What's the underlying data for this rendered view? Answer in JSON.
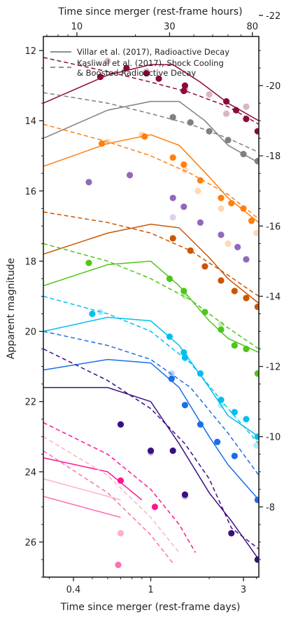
{
  "chart_data": {
    "type": "scatter",
    "x_scale": "log",
    "xlabel": "Time since merger (rest-frame days)",
    "top_xlabel": "Time since merger (rest-frame hours)",
    "ylabel": "Apparent magnitude",
    "right_ylabel": "",
    "xlim": [
      0.28,
      3.6
    ],
    "ylim": [
      27.0,
      11.6
    ],
    "xticks": [
      0.4,
      1,
      3
    ],
    "xtick_labels": [
      "0.4",
      "1",
      "3"
    ],
    "top_xticks_hours": [
      10,
      30,
      80
    ],
    "top_xtick_labels": [
      "10",
      "30",
      "80"
    ],
    "yticks": [
      12,
      14,
      16,
      18,
      20,
      22,
      24,
      26
    ],
    "ytick_labels": [
      "12",
      "14",
      "16",
      "18",
      "20",
      "22",
      "24",
      "26"
    ],
    "right_yticks_abs": [
      -22,
      -20,
      -18,
      -16,
      -14,
      -12,
      -10,
      -8
    ],
    "right_ytick_labels": [
      "-22",
      "-20",
      "-18",
      "-16",
      "-14",
      "-12",
      "-10",
      "-8"
    ],
    "abs_mag_offset": 33.0,
    "grid": false,
    "legend_position": "top-left",
    "legend": [
      {
        "label": "Villar et al. (2017), Radioactive Decay",
        "style": "solid",
        "color": "#808080"
      },
      {
        "label": "Kasliwal et al. (2017), Shock Cooling",
        "label2": "& Boosted Radioactive Decay",
        "style": "dashed",
        "color": "#808080"
      }
    ],
    "series": [
      {
        "color": "#8b0a3c",
        "solid": [
          [
            0.28,
            13.5
          ],
          [
            0.6,
            12.7
          ],
          [
            1.0,
            12.4
          ],
          [
            1.3,
            12.4
          ],
          [
            1.8,
            12.9
          ],
          [
            2.5,
            13.5
          ],
          [
            3.6,
            14.0
          ]
        ],
        "dashed": [
          [
            0.28,
            12.2
          ],
          [
            0.6,
            12.6
          ],
          [
            1.0,
            12.9
          ],
          [
            1.6,
            13.2
          ],
          [
            2.5,
            13.6
          ],
          [
            3.6,
            14.1
          ]
        ],
        "points": [
          [
            0.55,
            12.75
          ],
          [
            0.75,
            12.5
          ],
          [
            0.95,
            12.65
          ],
          [
            1.1,
            12.8
          ],
          [
            1.48,
            13.15
          ],
          [
            1.5,
            13.0
          ],
          [
            2.45,
            13.45
          ],
          [
            2.75,
            13.7
          ],
          [
            3.1,
            13.95
          ],
          [
            3.55,
            14.3
          ]
        ],
        "faint_points": [
          [
            0.6,
            12.3
          ],
          [
            0.95,
            12.6
          ],
          [
            1.5,
            13.1
          ],
          [
            2.0,
            13.25
          ],
          [
            2.45,
            13.8
          ],
          [
            3.1,
            13.6
          ]
        ]
      },
      {
        "color": "#808080",
        "solid": [
          [
            0.28,
            14.5
          ],
          [
            0.6,
            13.7
          ],
          [
            1.0,
            13.45
          ],
          [
            1.4,
            13.45
          ],
          [
            1.9,
            14.0
          ],
          [
            2.5,
            14.7
          ],
          [
            3.6,
            15.2
          ]
        ],
        "dashed": [
          [
            0.28,
            13.2
          ],
          [
            0.6,
            13.5
          ],
          [
            1.0,
            13.8
          ],
          [
            1.6,
            14.1
          ],
          [
            2.5,
            14.5
          ],
          [
            3.6,
            14.9
          ]
        ],
        "points": [
          [
            1.3,
            13.9
          ],
          [
            1.6,
            14.05
          ],
          [
            2.0,
            14.3
          ],
          [
            2.5,
            14.55
          ],
          [
            3.0,
            14.95
          ],
          [
            3.55,
            15.15
          ]
        ],
        "faint_points": []
      },
      {
        "color": "#ff7f0e",
        "solid": [
          [
            0.28,
            15.3
          ],
          [
            0.6,
            14.65
          ],
          [
            1.0,
            14.4
          ],
          [
            1.4,
            14.7
          ],
          [
            2.0,
            15.6
          ],
          [
            2.5,
            16.2
          ],
          [
            3.6,
            16.9
          ]
        ],
        "dashed": [
          [
            0.28,
            14.1
          ],
          [
            0.6,
            14.6
          ],
          [
            1.0,
            15.0
          ],
          [
            1.6,
            15.5
          ],
          [
            2.5,
            16.1
          ],
          [
            3.6,
            16.8
          ]
        ],
        "points": [
          [
            0.56,
            14.65
          ],
          [
            0.93,
            14.45
          ],
          [
            1.3,
            15.05
          ],
          [
            1.48,
            15.25
          ],
          [
            1.8,
            15.7
          ],
          [
            2.3,
            16.2
          ],
          [
            2.6,
            16.35
          ],
          [
            3.0,
            16.5
          ],
          [
            3.3,
            16.85
          ]
        ],
        "faint_points": [
          [
            0.6,
            14.6
          ],
          [
            0.9,
            14.4
          ],
          [
            1.5,
            15.4
          ],
          [
            1.75,
            16.0
          ],
          [
            2.3,
            16.5
          ],
          [
            2.5,
            17.5
          ],
          [
            3.5,
            17.2
          ]
        ]
      },
      {
        "color": "#9467bd",
        "solid": [],
        "dashed": [],
        "points": [
          [
            0.48,
            15.75
          ],
          [
            0.78,
            15.55
          ],
          [
            1.3,
            16.2
          ],
          [
            1.48,
            16.45
          ],
          [
            1.8,
            16.9
          ],
          [
            2.3,
            17.25
          ],
          [
            2.8,
            17.6
          ],
          [
            3.1,
            17.95
          ]
        ],
        "faint_points": [
          [
            1.3,
            16.75
          ]
        ]
      },
      {
        "color": "#cc5500",
        "solid": [
          [
            0.28,
            17.8
          ],
          [
            0.6,
            17.2
          ],
          [
            1.0,
            16.95
          ],
          [
            1.4,
            17.05
          ],
          [
            2.0,
            17.9
          ],
          [
            2.5,
            18.5
          ],
          [
            3.6,
            19.2
          ]
        ],
        "dashed": [
          [
            0.28,
            16.6
          ],
          [
            0.6,
            16.9
          ],
          [
            1.0,
            17.2
          ],
          [
            1.6,
            17.7
          ],
          [
            2.5,
            18.4
          ],
          [
            3.6,
            19.0
          ]
        ],
        "points": [
          [
            1.3,
            17.35
          ],
          [
            1.6,
            17.7
          ],
          [
            1.9,
            18.15
          ],
          [
            2.3,
            18.55
          ],
          [
            2.7,
            18.85
          ],
          [
            3.1,
            19.05
          ],
          [
            3.55,
            19.3
          ]
        ],
        "faint_points": []
      },
      {
        "color": "#4dc61a",
        "solid": [
          [
            0.28,
            18.7
          ],
          [
            0.6,
            18.1
          ],
          [
            1.0,
            18.0
          ],
          [
            1.4,
            18.7
          ],
          [
            2.0,
            19.7
          ],
          [
            2.5,
            20.2
          ],
          [
            3.6,
            20.6
          ]
        ],
        "dashed": [
          [
            0.28,
            17.5
          ],
          [
            0.6,
            18.0
          ],
          [
            1.0,
            18.5
          ],
          [
            1.6,
            19.1
          ],
          [
            2.5,
            19.9
          ],
          [
            3.6,
            20.5
          ]
        ],
        "points": [
          [
            0.48,
            18.05
          ],
          [
            1.25,
            18.5
          ],
          [
            1.48,
            18.85
          ],
          [
            1.9,
            19.45
          ],
          [
            2.3,
            19.95
          ],
          [
            2.7,
            20.4
          ],
          [
            3.1,
            20.5
          ],
          [
            3.55,
            21.2
          ]
        ],
        "faint_points": [
          [
            1.5,
            19.0
          ],
          [
            2.3,
            19.8
          ]
        ]
      },
      {
        "color": "#00c0f0",
        "solid": [
          [
            0.28,
            20.0
          ],
          [
            0.6,
            19.6
          ],
          [
            1.0,
            19.7
          ],
          [
            1.4,
            20.4
          ],
          [
            2.0,
            21.6
          ],
          [
            2.5,
            22.4
          ],
          [
            3.6,
            23.0
          ]
        ],
        "dashed": [
          [
            0.28,
            19.0
          ],
          [
            0.6,
            19.5
          ],
          [
            1.0,
            20.0
          ],
          [
            1.6,
            20.9
          ],
          [
            2.5,
            22.2
          ],
          [
            3.6,
            23.2
          ]
        ],
        "points": [
          [
            0.5,
            19.5
          ],
          [
            1.25,
            20.15
          ],
          [
            1.48,
            20.6
          ],
          [
            1.5,
            20.75
          ],
          [
            1.8,
            21.2
          ],
          [
            2.3,
            21.95
          ],
          [
            2.7,
            22.3
          ],
          [
            3.1,
            22.5
          ],
          [
            3.55,
            23.0
          ]
        ],
        "faint_points": [
          [
            0.55,
            19.45
          ],
          [
            1.5,
            20.7
          ],
          [
            2.3,
            22.1
          ],
          [
            3.5,
            23.25
          ]
        ]
      },
      {
        "color": "#1a6ee8",
        "solid": [
          [
            0.28,
            21.1
          ],
          [
            0.6,
            20.8
          ],
          [
            1.0,
            20.9
          ],
          [
            1.4,
            21.6
          ],
          [
            2.0,
            23.0
          ],
          [
            2.5,
            23.8
          ],
          [
            3.6,
            24.8
          ]
        ],
        "dashed": [
          [
            0.28,
            20.0
          ],
          [
            0.6,
            20.4
          ],
          [
            1.0,
            20.8
          ],
          [
            1.6,
            21.6
          ],
          [
            2.5,
            22.9
          ],
          [
            3.6,
            24.1
          ]
        ],
        "points": [
          [
            1.28,
            21.35
          ],
          [
            1.5,
            22.1
          ],
          [
            1.8,
            22.65
          ],
          [
            2.2,
            23.15
          ],
          [
            2.7,
            23.55
          ],
          [
            3.55,
            24.8
          ]
        ],
        "faint_points": [
          [
            1.28,
            21.2
          ]
        ]
      },
      {
        "color": "#3b0f80",
        "solid": [
          [
            0.28,
            21.6
          ],
          [
            0.6,
            21.6
          ],
          [
            1.0,
            22.0
          ],
          [
            1.4,
            23.2
          ],
          [
            2.0,
            24.6
          ],
          [
            2.6,
            25.4
          ],
          [
            3.6,
            26.5
          ]
        ],
        "dashed": [
          [
            0.28,
            20.5
          ],
          [
            0.6,
            21.4
          ],
          [
            1.0,
            22.2
          ],
          [
            1.5,
            23.2
          ],
          [
            2.0,
            24.2
          ],
          [
            2.6,
            25.6
          ],
          [
            3.6,
            26.2
          ]
        ],
        "points": [
          [
            0.7,
            22.65
          ],
          [
            1.0,
            23.4
          ],
          [
            1.3,
            23.4
          ],
          [
            1.5,
            24.65
          ],
          [
            2.6,
            25.75
          ],
          [
            3.55,
            26.5
          ]
        ],
        "faint_points": [
          [
            1.0,
            23.45
          ],
          [
            1.5,
            24.7
          ]
        ]
      },
      {
        "color": "#ff1493",
        "solid": [
          [
            0.28,
            23.6
          ],
          [
            0.6,
            24.0
          ],
          [
            0.9,
            24.8
          ]
        ],
        "dashed": [
          [
            0.28,
            22.6
          ],
          [
            0.6,
            23.5
          ],
          [
            1.0,
            24.5
          ],
          [
            1.4,
            25.5
          ],
          [
            1.7,
            26.3
          ]
        ],
        "points": [
          [
            0.7,
            24.25
          ],
          [
            1.05,
            25.0
          ]
        ],
        "faint_points": []
      },
      {
        "color": "#ffb0c8",
        "solid": [
          [
            0.28,
            24.2
          ],
          [
            0.7,
            24.8
          ]
        ],
        "dashed": [
          [
            0.28,
            23.0
          ],
          [
            0.6,
            24.1
          ],
          [
            1.0,
            25.3
          ],
          [
            1.4,
            26.3
          ]
        ],
        "points": [
          [
            0.7,
            25.75
          ]
        ],
        "faint_points": []
      },
      {
        "color": "#ff6eb4",
        "solid": [
          [
            0.28,
            24.7
          ],
          [
            0.7,
            25.3
          ]
        ],
        "dashed": [
          [
            0.28,
            23.4
          ],
          [
            0.6,
            24.6
          ],
          [
            1.0,
            25.8
          ],
          [
            1.3,
            26.6
          ]
        ],
        "points": [
          [
            0.68,
            26.65
          ]
        ],
        "faint_points": []
      }
    ]
  }
}
